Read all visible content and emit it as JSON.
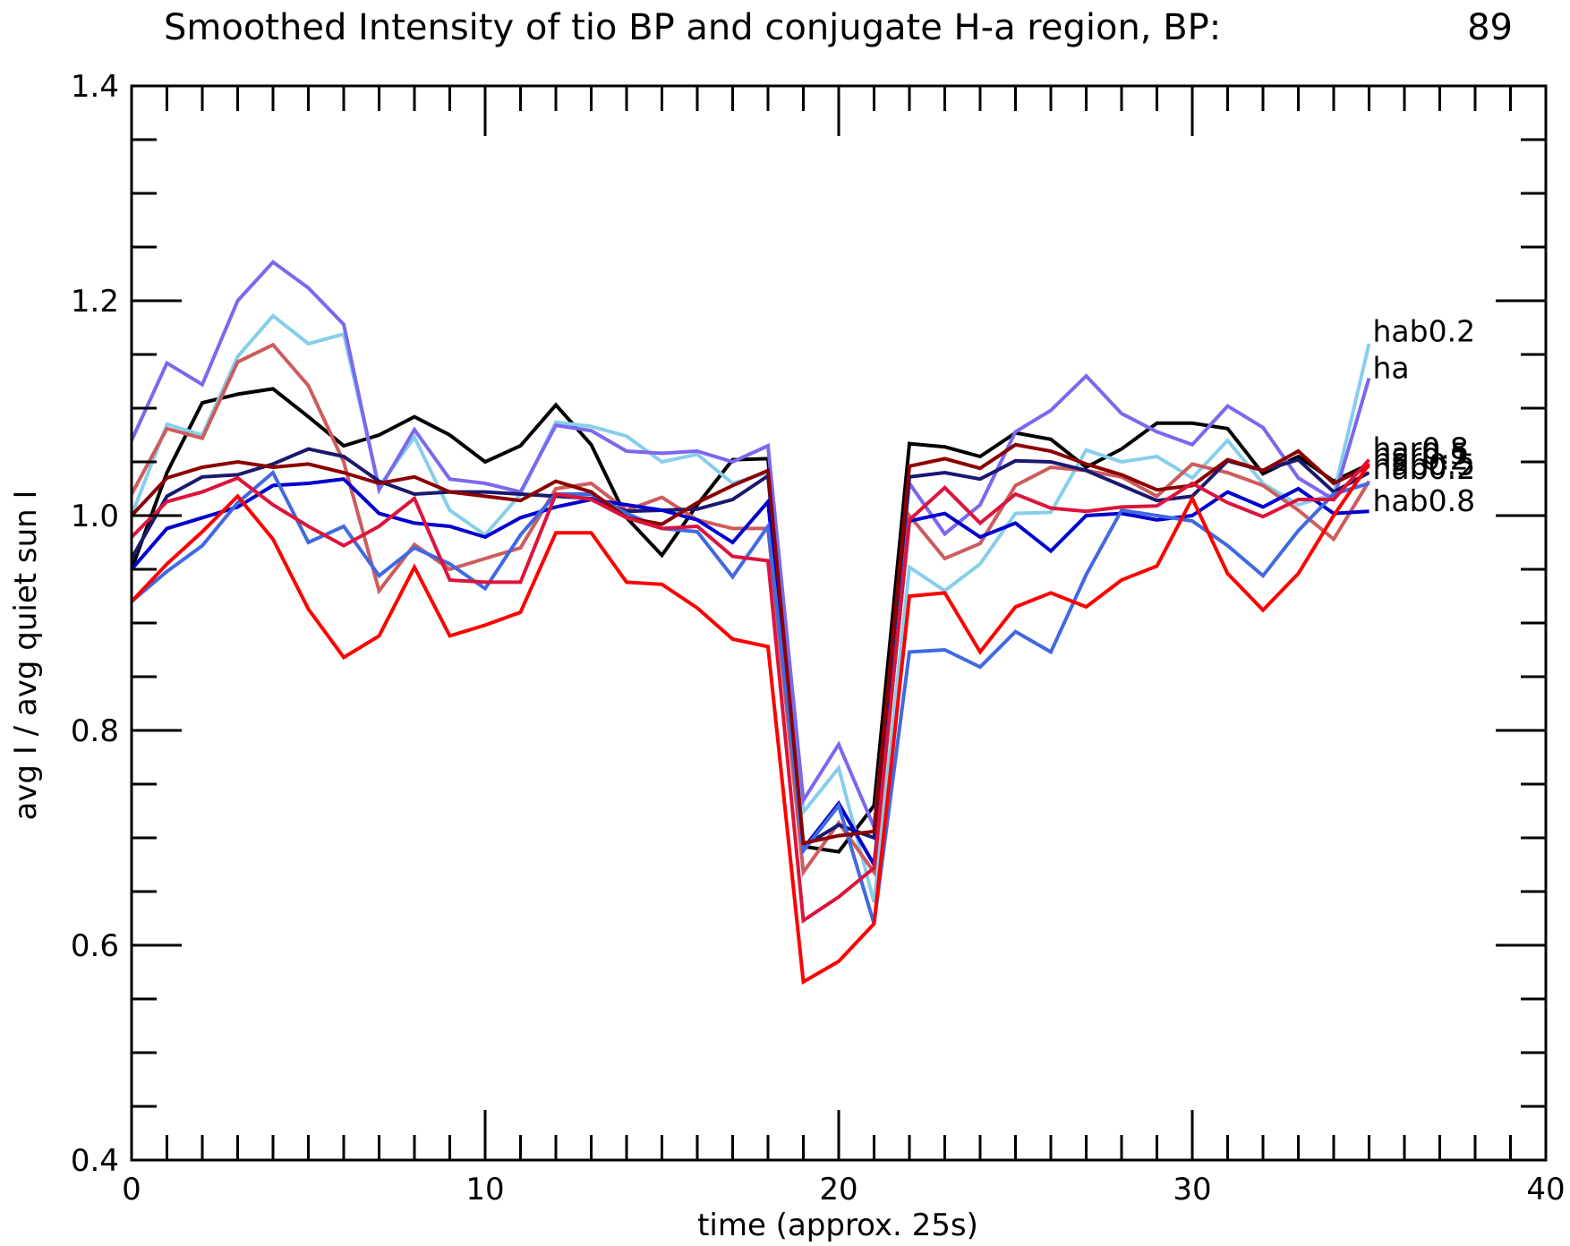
{
  "chart_data": {
    "type": "line",
    "title": "Smoothed Intensity of tio BP and conjugate H-a region, BP:",
    "title_value": "89",
    "xlabel": "time (approx. 25s)",
    "ylabel": "avg I / avg quiet sun I",
    "xlim": [
      0,
      40
    ],
    "ylim": [
      0.4,
      1.4
    ],
    "x_ticks": [
      "0",
      "10",
      "20",
      "30",
      "40"
    ],
    "y_ticks": [
      "0.4",
      "0.6",
      "0.8",
      "1.0",
      "1.2",
      "1.4"
    ],
    "x_minor_step": 1,
    "y_minor_step": 0.05,
    "grid": false,
    "x": [
      0,
      1,
      2,
      3,
      4,
      5,
      6,
      7,
      8,
      9,
      10,
      11,
      12,
      13,
      14,
      15,
      16,
      17,
      18,
      19,
      20,
      21,
      22,
      23,
      24,
      25,
      26,
      27,
      28,
      29,
      30,
      31,
      32,
      33,
      34,
      35
    ],
    "series": [
      {
        "color": "#000000",
        "values": [
          0.95,
          1.04,
          1.105,
          1.113,
          1.118,
          1.092,
          1.065,
          1.075,
          1.092,
          1.075,
          1.05,
          1.065,
          1.103,
          1.066,
          0.998,
          0.963,
          1.01,
          1.052,
          1.053,
          0.692,
          0.687,
          0.73,
          1.067,
          1.064,
          1.055,
          1.077,
          1.071,
          1.045,
          1.062,
          1.086,
          1.086,
          1.081,
          1.039,
          1.055,
          1.032,
          1.048
        ]
      },
      {
        "color": "#87CEEB",
        "values": [
          1.0,
          1.085,
          1.075,
          1.148,
          1.186,
          1.16,
          1.169,
          1.027,
          1.073,
          1.005,
          0.982,
          1.02,
          1.087,
          1.083,
          1.074,
          1.05,
          1.057,
          1.03,
          1.04,
          0.724,
          0.765,
          0.64,
          0.952,
          0.93,
          0.955,
          1.002,
          1.003,
          1.061,
          1.05,
          1.055,
          1.035,
          1.07,
          1.03,
          1.01,
          1.02,
          1.16
        ]
      },
      {
        "color": "#7B68EE",
        "values": [
          1.07,
          1.142,
          1.122,
          1.2,
          1.236,
          1.212,
          1.178,
          1.024,
          1.08,
          1.034,
          1.03,
          1.022,
          1.084,
          1.079,
          1.06,
          1.058,
          1.06,
          1.05,
          1.065,
          0.735,
          0.787,
          0.71,
          1.03,
          0.983,
          1.01,
          1.078,
          1.098,
          1.13,
          1.095,
          1.078,
          1.066,
          1.102,
          1.082,
          1.035,
          1.015,
          1.128
        ]
      },
      {
        "color": "#CD5C5C",
        "values": [
          1.02,
          1.081,
          1.072,
          1.143,
          1.159,
          1.121,
          1.05,
          0.93,
          0.973,
          0.95,
          0.96,
          0.97,
          1.025,
          1.03,
          1.005,
          1.017,
          0.996,
          0.988,
          0.988,
          0.668,
          0.714,
          0.668,
          1.0,
          0.96,
          0.974,
          1.028,
          1.045,
          1.042,
          1.036,
          1.018,
          1.048,
          1.04,
          1.028,
          1.005,
          0.978,
          1.032
        ]
      },
      {
        "color": "#191970",
        "values": [
          0.96,
          1.018,
          1.036,
          1.038,
          1.048,
          1.062,
          1.055,
          1.032,
          1.02,
          1.022,
          1.022,
          1.02,
          1.018,
          1.016,
          1.004,
          1.005,
          1.006,
          1.015,
          1.037,
          0.692,
          0.712,
          0.7,
          1.036,
          1.04,
          1.034,
          1.051,
          1.05,
          1.042,
          1.028,
          1.014,
          1.018,
          1.051,
          1.042,
          1.052,
          1.022,
          1.04
        ]
      },
      {
        "color": "#0000CD",
        "values": [
          0.95,
          0.988,
          0.998,
          1.008,
          1.028,
          1.03,
          1.034,
          1.002,
          0.993,
          0.99,
          0.98,
          0.998,
          1.008,
          1.015,
          1.01,
          1.005,
          0.996,
          0.975,
          1.013,
          0.69,
          0.732,
          0.675,
          0.995,
          1.002,
          0.98,
          0.993,
          0.967,
          1.0,
          1.002,
          0.996,
          1.0,
          1.022,
          1.008,
          1.025,
          1.002,
          1.004
        ]
      },
      {
        "color": "#4169E1",
        "values": [
          0.92,
          0.948,
          0.972,
          1.012,
          1.04,
          0.975,
          0.99,
          0.944,
          0.97,
          0.955,
          0.932,
          0.982,
          1.02,
          1.02,
          1.002,
          0.988,
          0.985,
          0.943,
          0.99,
          0.688,
          0.73,
          0.62,
          0.873,
          0.875,
          0.859,
          0.892,
          0.873,
          0.945,
          1.005,
          1.0,
          0.995,
          0.972,
          0.944,
          0.986,
          1.02,
          1.03
        ]
      },
      {
        "color": "#8B0000",
        "values": [
          1.0,
          1.035,
          1.045,
          1.05,
          1.045,
          1.048,
          1.04,
          1.03,
          1.036,
          1.022,
          1.018,
          1.014,
          1.032,
          1.022,
          0.998,
          0.992,
          1.012,
          1.028,
          1.042,
          0.695,
          0.702,
          0.706,
          1.046,
          1.053,
          1.044,
          1.066,
          1.06,
          1.048,
          1.038,
          1.024,
          1.028,
          1.052,
          1.042,
          1.06,
          1.03,
          1.046
        ]
      },
      {
        "color": "#DC143C",
        "values": [
          0.98,
          1.013,
          1.022,
          1.035,
          1.01,
          0.99,
          0.972,
          0.99,
          1.016,
          0.94,
          0.938,
          0.938,
          1.02,
          1.015,
          0.998,
          0.988,
          0.99,
          0.962,
          0.958,
          0.623,
          0.645,
          0.672,
          0.996,
          1.026,
          0.993,
          1.02,
          1.007,
          1.004,
          1.008,
          1.009,
          1.03,
          1.012,
          0.999,
          1.015,
          1.015,
          1.052
        ]
      },
      {
        "color": "#FF0000",
        "values": [
          0.92,
          0.955,
          0.985,
          1.018,
          0.978,
          0.913,
          0.868,
          0.888,
          0.952,
          0.888,
          0.898,
          0.91,
          0.984,
          0.984,
          0.938,
          0.936,
          0.914,
          0.885,
          0.878,
          0.566,
          0.585,
          0.62,
          0.925,
          0.928,
          0.873,
          0.915,
          0.928,
          0.915,
          0.94,
          0.953,
          1.016,
          0.946,
          0.912,
          0.946,
          1.0,
          1.048
        ]
      }
    ],
    "end_labels": [
      {
        "text": "hab0.2",
        "y_value": 1.172
      },
      {
        "text": "ha",
        "y_value": 1.138
      },
      {
        "text": "har0.8",
        "y_value": 1.063
      },
      {
        "text": "har0.5",
        "y_value": 1.058
      },
      {
        "text": "har0.2",
        "y_value": 1.053
      },
      {
        "text": "hab0.5",
        "y_value": 1.048
      },
      {
        "text": "hab0.2",
        "y_value": 1.044
      },
      {
        "text": "hab0.8",
        "y_value": 1.014
      }
    ]
  }
}
